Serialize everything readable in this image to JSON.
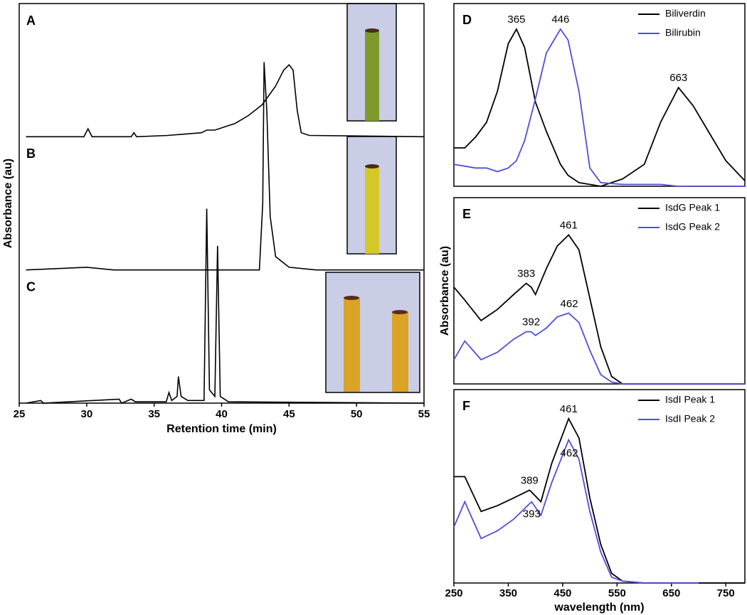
{
  "chart_data": [
    {
      "type": "line",
      "x_label": "Retention time (min)",
      "y_label": "Absorbance (au)",
      "color": "#000000",
      "xlim": [
        25,
        55
      ],
      "xticks": [
        25,
        30,
        35,
        40,
        45,
        50,
        55
      ],
      "ylim": [
        0,
        1
      ],
      "panels": [
        {
          "label": "A",
          "x": [
            25.5,
            29.8,
            30.1,
            30.4,
            33.3,
            33.5,
            33.7,
            36,
            38.5,
            38.9,
            39.5,
            41,
            42,
            43,
            44,
            44.6,
            45,
            45.3,
            45.6,
            45.9,
            46.5,
            55
          ],
          "values": [
            0,
            0,
            0.06,
            0,
            0,
            0.03,
            0,
            0.01,
            0.03,
            0.05,
            0.05,
            0.1,
            0.16,
            0.24,
            0.38,
            0.5,
            0.54,
            0.5,
            0.2,
            0.03,
            0.01,
            0
          ]
        },
        {
          "label": "B",
          "x": [
            25.5,
            30,
            32,
            42.8,
            43.05,
            43.15,
            43.35,
            43.6,
            44,
            45,
            47,
            55
          ],
          "values": [
            0,
            0.02,
            0,
            0,
            0.5,
            1.56,
            1.2,
            0.4,
            0.1,
            0.02,
            0,
            0
          ]
        },
        {
          "label": "C",
          "x": [
            25.5,
            26.6,
            26.8,
            32.4,
            32.6,
            33.3,
            33.6,
            35.9,
            36.1,
            36.3,
            36.7,
            36.8,
            37.0,
            37.5,
            38.7,
            38.9,
            39.1,
            39.5,
            39.7,
            39.9,
            40.5,
            55
          ],
          "values": [
            0,
            0.02,
            0,
            0.03,
            0,
            0.03,
            0.01,
            0.01,
            0.08,
            0.02,
            0.05,
            0.2,
            0.05,
            0.02,
            0.02,
            1.46,
            0.1,
            0.05,
            1.18,
            0.05,
            0.01,
            0
          ]
        }
      ]
    },
    {
      "type": "line",
      "panel_label": "D",
      "xlim": [
        250,
        785
      ],
      "ylim": [
        0,
        1
      ],
      "legend": "upper right",
      "x": [
        250,
        270,
        290,
        310,
        330,
        350,
        365,
        380,
        400,
        420,
        446,
        460,
        480,
        500,
        520,
        560,
        600,
        630,
        663,
        690,
        720,
        750,
        785
      ],
      "series": [
        {
          "name": "Biliverdin",
          "color": "#000000",
          "peak_labels": [
            365,
            663
          ],
          "values": [
            0.21,
            0.21,
            0.27,
            0.35,
            0.52,
            0.78,
            0.86,
            0.76,
            0.46,
            0.3,
            0.12,
            0.06,
            0.02,
            0.01,
            0,
            0.04,
            0.12,
            0.35,
            0.54,
            0.44,
            0.29,
            0.14,
            0.03
          ]
        },
        {
          "name": "Bilirubin",
          "color": "#4f4fd9",
          "peak_labels": [
            446
          ],
          "values": [
            0.12,
            0.11,
            0.1,
            0.1,
            0.08,
            0.1,
            0.14,
            0.25,
            0.48,
            0.73,
            0.86,
            0.8,
            0.52,
            0.1,
            0.02,
            0.01,
            0.01,
            0.01,
            0,
            0,
            0,
            0,
            0
          ]
        }
      ]
    },
    {
      "type": "line",
      "panel_label": "E",
      "y_label": "Absorbance (au)",
      "xlim": [
        250,
        785
      ],
      "ylim": [
        0,
        1
      ],
      "legend": "upper right",
      "x": [
        250,
        270,
        300,
        330,
        360,
        383,
        392,
        400,
        420,
        440,
        461,
        480,
        500,
        520,
        540,
        560,
        600,
        700,
        785
      ],
      "series": [
        {
          "name": "IsdG Peak 1",
          "color": "#000000",
          "peak_labels": [
            383,
            461
          ],
          "values": [
            0.52,
            0.45,
            0.34,
            0.4,
            0.48,
            0.54,
            0.52,
            0.48,
            0.62,
            0.74,
            0.8,
            0.72,
            0.46,
            0.2,
            0.04,
            0,
            0,
            0,
            0
          ]
        },
        {
          "name": "IsdG Peak 2",
          "color": "#4f4fd9",
          "peak_labels": [
            392,
            462
          ],
          "values": [
            0.13,
            0.23,
            0.13,
            0.17,
            0.24,
            0.28,
            0.28,
            0.26,
            0.3,
            0.36,
            0.38,
            0.33,
            0.18,
            0.05,
            0.01,
            0,
            0,
            0,
            0
          ]
        }
      ]
    },
    {
      "type": "line",
      "panel_label": "F",
      "x_label": "wavelength (nm)",
      "xlim": [
        250,
        785
      ],
      "ylim": [
        0,
        1
      ],
      "legend": "upper right",
      "xticks": [
        250,
        350,
        450,
        550,
        650,
        750
      ],
      "x": [
        250,
        270,
        300,
        330,
        360,
        389,
        393,
        410,
        430,
        461,
        480,
        500,
        520,
        540,
        560,
        600,
        700,
        785
      ],
      "series": [
        {
          "name": "IsdI Peak 1",
          "color": "#000000",
          "peak_labels": [
            389,
            461
          ],
          "values": [
            0.55,
            0.55,
            0.37,
            0.4,
            0.44,
            0.48,
            0.47,
            0.42,
            0.62,
            0.85,
            0.75,
            0.44,
            0.2,
            0.05,
            0.01,
            0,
            0,
            0
          ]
        },
        {
          "name": "IsdI Peak 2",
          "color": "#4f4fd9",
          "peak_labels_below": [
            393,
            462
          ],
          "values": [
            0.29,
            0.42,
            0.23,
            0.27,
            0.33,
            0.41,
            0.42,
            0.35,
            0.52,
            0.74,
            0.64,
            0.37,
            0.16,
            0.03,
            0.01,
            0,
            0,
            null
          ]
        }
      ]
    }
  ]
}
